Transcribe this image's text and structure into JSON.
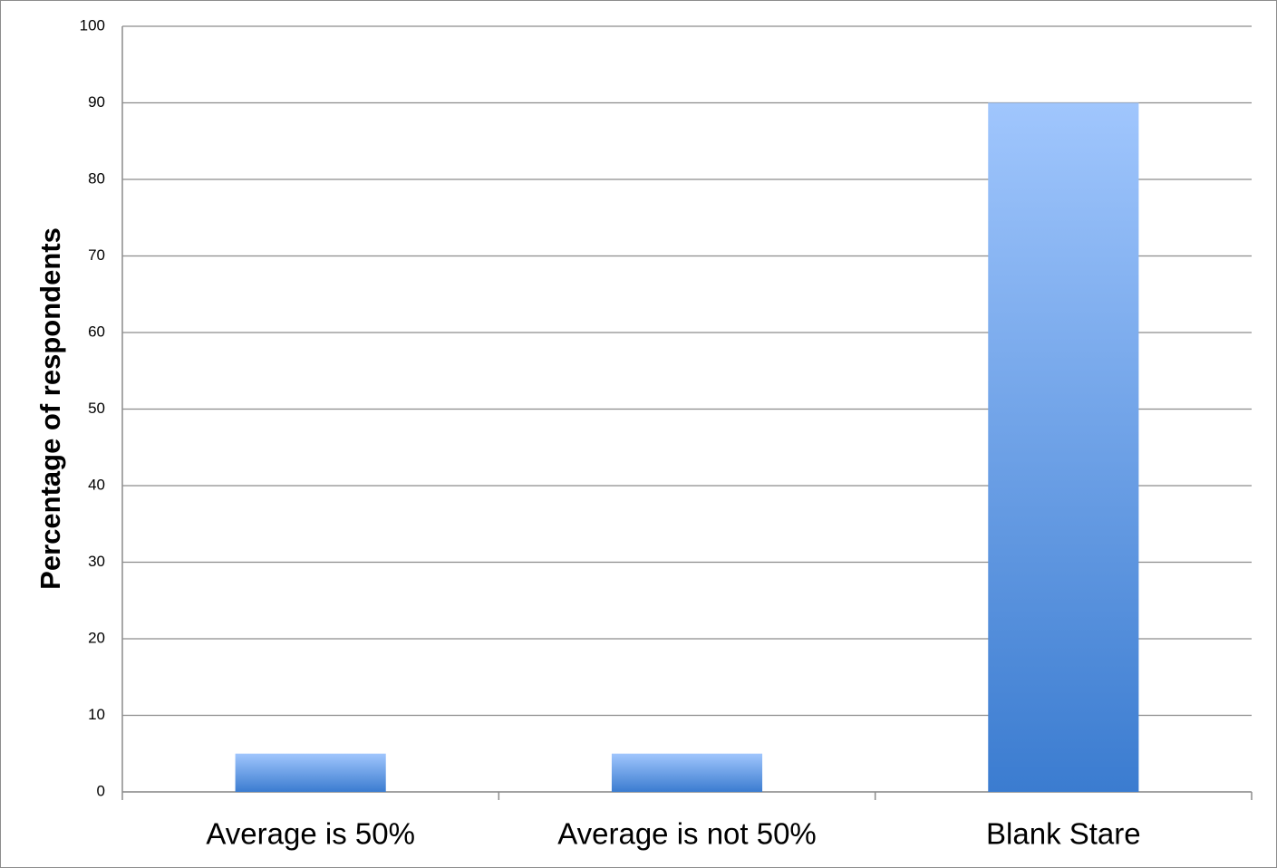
{
  "chart_data": {
    "type": "bar",
    "y_label": "Percentage of respondents",
    "categories": [
      "Average is 50%",
      "Average is not 50%",
      "Blank Stare"
    ],
    "values": [
      5,
      5,
      90
    ],
    "ylim": [
      0,
      100
    ],
    "yticks": [
      0,
      10,
      20,
      30,
      40,
      50,
      60,
      70,
      80,
      90,
      100
    ],
    "grid": true
  }
}
